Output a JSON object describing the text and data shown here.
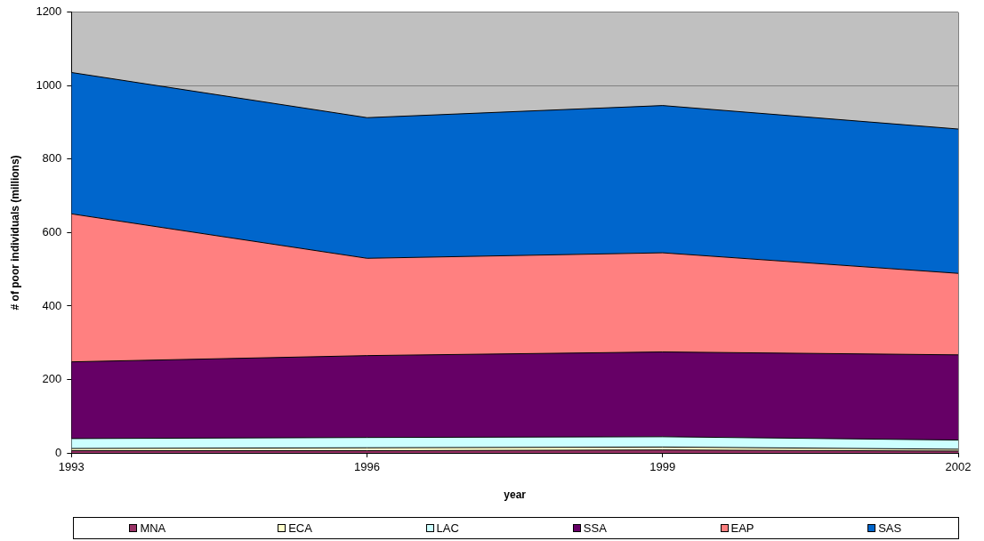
{
  "chart_data": {
    "type": "area",
    "stacked": true,
    "xlabel": "year",
    "ylabel": "# of poor individuals (millions)",
    "x": [
      1993,
      1996,
      1999,
      2002
    ],
    "xlim": [
      1993,
      2002
    ],
    "xticks": [
      1993,
      1996,
      1999,
      2002
    ],
    "ylim": [
      0,
      1200
    ],
    "yticks": [
      0,
      200,
      400,
      600,
      800,
      1000,
      1200
    ],
    "grid": "y",
    "legend": "bottom",
    "series": [
      {
        "name": "MNA",
        "color": "#993366",
        "values": [
          6,
          6,
          8,
          5
        ]
      },
      {
        "name": "ECA",
        "color": "#ffffcc",
        "values": [
          6,
          8,
          8,
          5
        ]
      },
      {
        "name": "LAC",
        "color": "#ccffff",
        "values": [
          27,
          28,
          28,
          25
        ]
      },
      {
        "name": "SSA",
        "color": "#660066",
        "values": [
          209,
          223,
          231,
          232
        ]
      },
      {
        "name": "EAP",
        "color": "#ff8080",
        "values": [
          403,
          265,
          270,
          222
        ]
      },
      {
        "name": "SAS",
        "color": "#0066cc",
        "values": [
          385,
          383,
          401,
          393
        ]
      }
    ]
  }
}
